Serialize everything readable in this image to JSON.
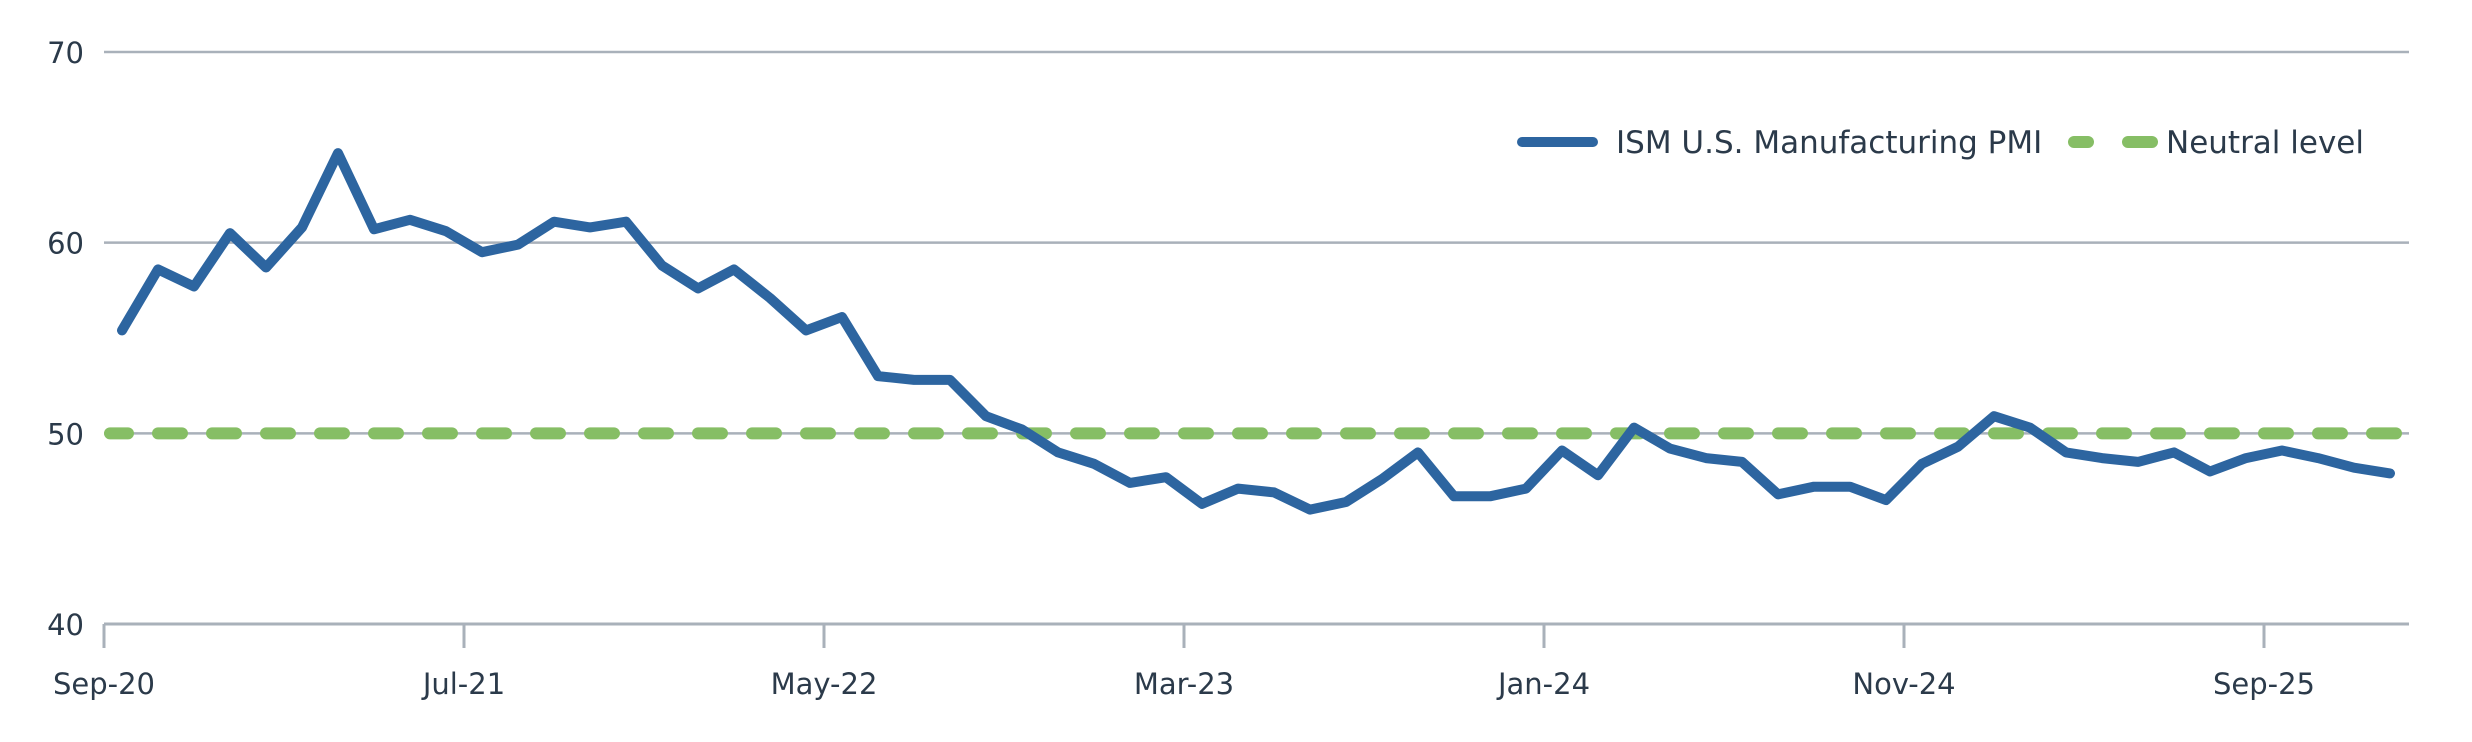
{
  "chart_data": {
    "type": "line",
    "title": "",
    "xlabel": "",
    "ylabel": "",
    "ylim": [
      40,
      70
    ],
    "yticks": [
      40,
      50,
      60,
      70
    ],
    "grid": true,
    "legend_position": "top-right (inside plot)",
    "x_tick_labels": [
      "Sep-20",
      "Jul-21",
      "May-22",
      "Mar-23",
      "Jan-24",
      "Nov-24",
      "Sep-25"
    ],
    "x": [
      "Sep-20",
      "Oct-20",
      "Nov-20",
      "Dec-20",
      "Jan-21",
      "Feb-21",
      "Mar-21",
      "Apr-21",
      "May-21",
      "Jun-21",
      "Jul-21",
      "Aug-21",
      "Sep-21",
      "Oct-21",
      "Nov-21",
      "Dec-21",
      "Jan-22",
      "Feb-22",
      "Mar-22",
      "Apr-22",
      "May-22",
      "Jun-22",
      "Jul-22",
      "Aug-22",
      "Sep-22",
      "Oct-22",
      "Nov-22",
      "Dec-22",
      "Jan-23",
      "Feb-23",
      "Mar-23",
      "Apr-23",
      "May-23",
      "Jun-23",
      "Jul-23",
      "Aug-23",
      "Sep-23",
      "Oct-23",
      "Nov-23",
      "Dec-23",
      "Jan-24",
      "Feb-24",
      "Mar-24",
      "Apr-24",
      "May-24",
      "Jun-24",
      "Jul-24",
      "Aug-24",
      "Sep-24",
      "Oct-24",
      "Nov-24",
      "Dec-24",
      "Jan-25",
      "Feb-25",
      "Mar-25",
      "Apr-25",
      "May-25",
      "Jun-25",
      "Jul-25",
      "Aug-25",
      "Sep-25",
      "Oct-25",
      "Nov-25",
      "Dec-25"
    ],
    "series": [
      {
        "name": "ISM U.S. Manufacturing PMI",
        "color": "#2D65A0",
        "style": "solid",
        "values": [
          55.4,
          58.6,
          57.7,
          60.5,
          58.7,
          60.8,
          64.7,
          60.7,
          61.2,
          60.6,
          59.5,
          59.9,
          61.1,
          60.8,
          61.1,
          58.8,
          57.6,
          58.6,
          57.1,
          55.4,
          56.1,
          53.0,
          52.8,
          52.8,
          50.9,
          50.2,
          49.0,
          48.4,
          47.4,
          47.7,
          46.3,
          47.1,
          46.9,
          46.0,
          46.4,
          47.6,
          49.0,
          46.7,
          46.7,
          47.1,
          49.1,
          47.8,
          50.3,
          49.2,
          48.7,
          48.5,
          46.8,
          47.2,
          47.2,
          46.5,
          48.4,
          49.3,
          50.9,
          50.3,
          49.0,
          48.7,
          48.5,
          49.0,
          48.0,
          48.7,
          49.1,
          48.7,
          48.2,
          47.9
        ]
      },
      {
        "name": "Neutral level",
        "color": "#86BE65",
        "style": "dashed",
        "values": [
          50
        ]
      }
    ]
  },
  "legend": {
    "items": [
      {
        "label": "ISM U.S. Manufacturing PMI",
        "color": "#2D65A0",
        "style": "solid"
      },
      {
        "label": "Neutral level",
        "color": "#86BE65",
        "style": "dashed"
      }
    ]
  },
  "colors": {
    "grid": "#A9B1BA",
    "text": "#2B3A4A",
    "pmi_line": "#2D65A0",
    "neutral_line": "#86BE65"
  }
}
